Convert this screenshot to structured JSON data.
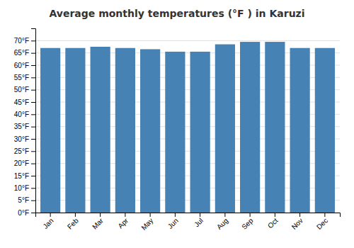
{
  "chart_data": {
    "type": "bar",
    "title": "Average monthly temperatures (°F ) in Karuzi",
    "categories": [
      "Jan",
      "Feb",
      "Mar",
      "Apr",
      "May",
      "Jun",
      "Jul",
      "Aug",
      "Sep",
      "Oct",
      "Nov",
      "Dec"
    ],
    "values": [
      67.0,
      67.0,
      67.5,
      67.0,
      66.5,
      65.5,
      65.5,
      68.5,
      69.5,
      69.5,
      67.0,
      67.0
    ],
    "ylim": [
      0,
      75
    ],
    "yticks": [
      {
        "value": 0,
        "label": "0°F"
      },
      {
        "value": 5,
        "label": "5°F"
      },
      {
        "value": 10,
        "label": "10°F"
      },
      {
        "value": 15,
        "label": "15°F"
      },
      {
        "value": 20,
        "label": "20°F"
      },
      {
        "value": 25,
        "label": "25°F"
      },
      {
        "value": 30,
        "label": "30°F"
      },
      {
        "value": 35,
        "label": "35°F"
      },
      {
        "value": 40,
        "label": "40°F"
      },
      {
        "value": 45,
        "label": "45°F"
      },
      {
        "value": 50,
        "label": "50°F"
      },
      {
        "value": 55,
        "label": "55°F"
      },
      {
        "value": 60,
        "label": "60°F"
      },
      {
        "value": 65,
        "label": "65°F"
      },
      {
        "value": 70,
        "label": "70°F"
      }
    ],
    "grid": true
  }
}
